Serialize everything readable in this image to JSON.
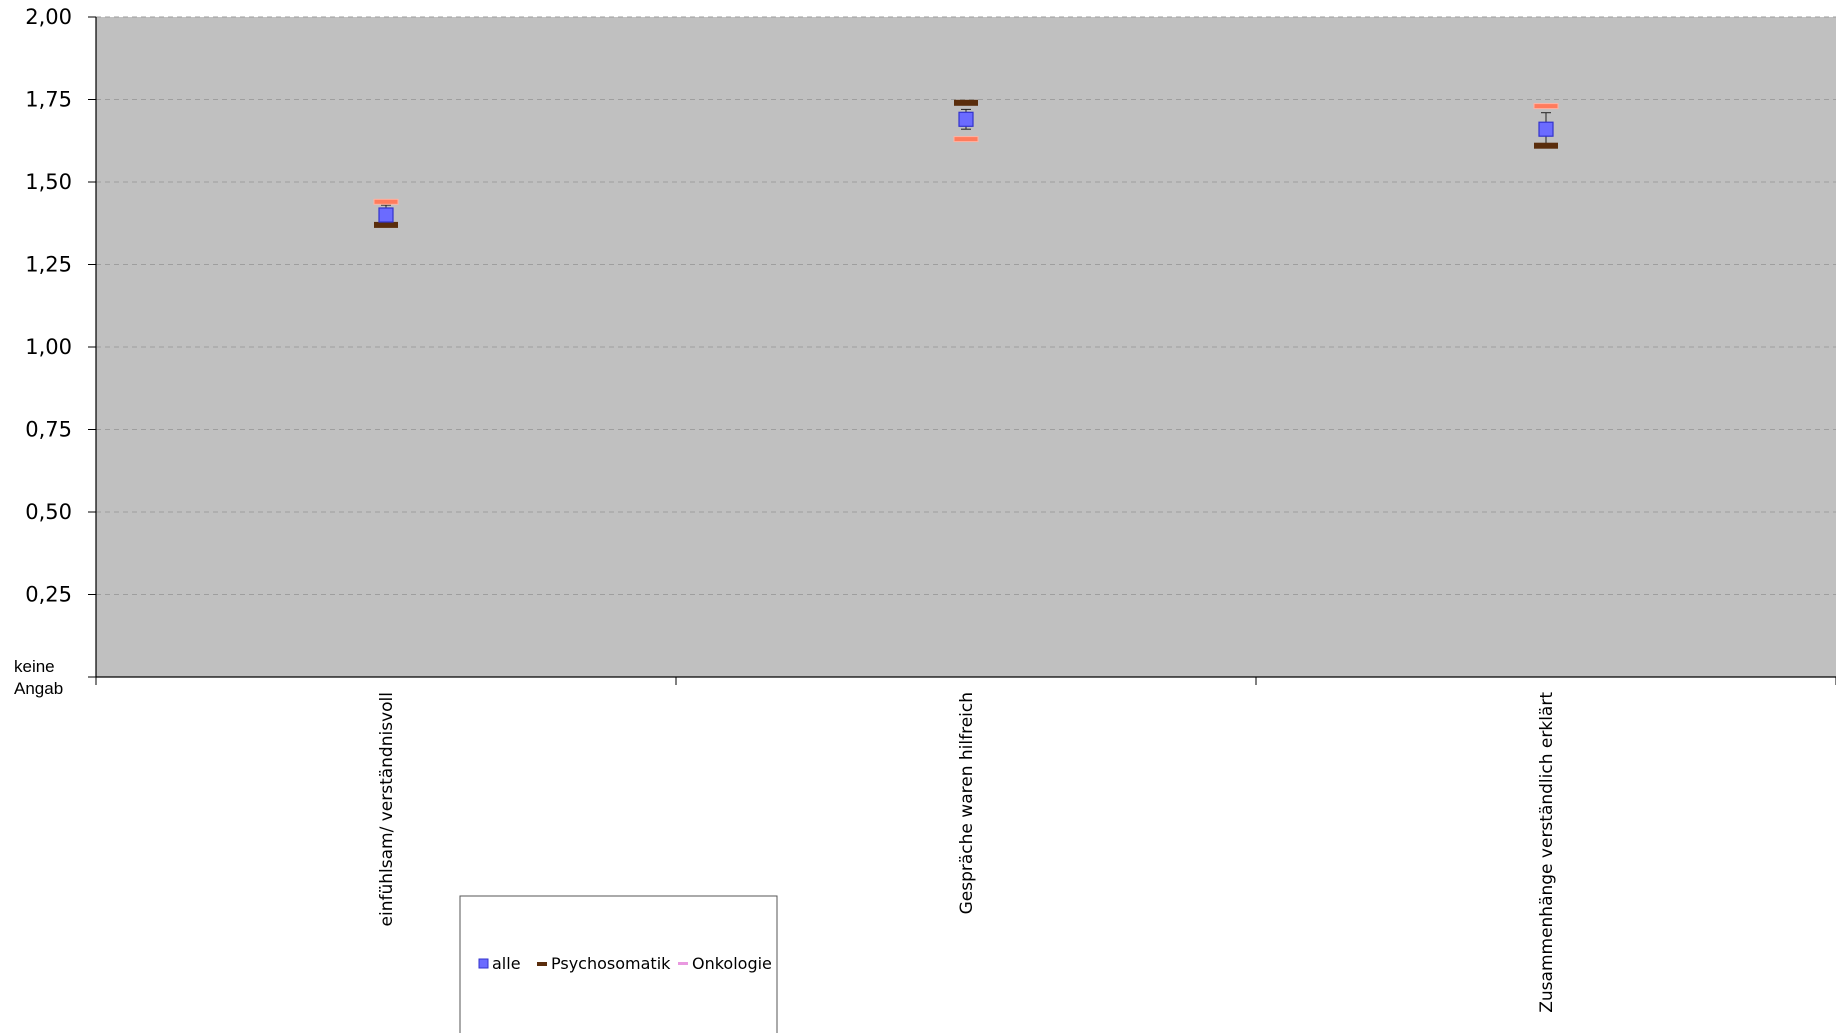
{
  "chart_data": {
    "type": "scatter",
    "categories": [
      "einfühlsam/ verständnisvoll",
      "Gespräche waren hilfreich",
      "Zusammenhänge verständlich erklärt"
    ],
    "ylim": [
      0,
      2
    ],
    "yticks": [
      "2,00",
      "1,75",
      "1,50",
      "1,25",
      "1,00",
      "0,75",
      "0,50",
      "0,25"
    ],
    "yticks_values": [
      2.0,
      1.75,
      1.5,
      1.25,
      1.0,
      0.75,
      0.5,
      0.25
    ],
    "y_zero_label": [
      "keine",
      "Angab"
    ],
    "grid": true,
    "legend_position": "bottom",
    "series": [
      {
        "name": "alle",
        "values": [
          1.4,
          1.69,
          1.66
        ],
        "error_low": [
          1.37,
          1.66,
          1.61
        ],
        "error_high": [
          1.43,
          1.72,
          1.71
        ],
        "color": "#6b6bff",
        "marker": "square"
      },
      {
        "name": "Psychosomatik",
        "values": [
          1.37,
          1.74,
          1.61
        ],
        "color": "#5a2d0c",
        "marker": "dash"
      },
      {
        "name": "Onkologie",
        "values": [
          1.44,
          1.63,
          1.73
        ],
        "color": "#ff7b5c",
        "marker": "dash"
      }
    ],
    "colors": {
      "plot_background": "#c0c0c0",
      "gridline": "#9e9e9e",
      "axis": "#000000"
    }
  }
}
